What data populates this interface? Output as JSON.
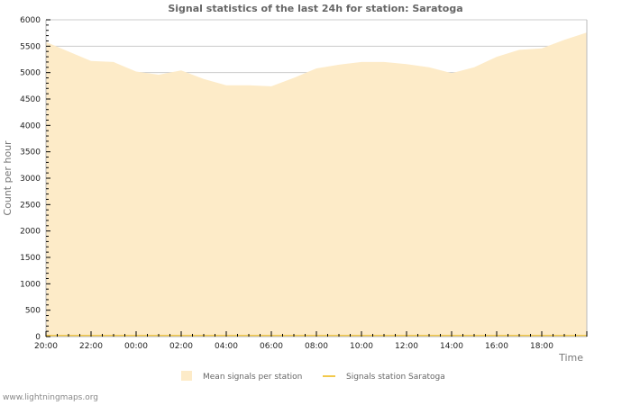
{
  "chart_data": {
    "type": "area",
    "title": "Signal statistics of the last 24h for station: Saratoga",
    "xlabel": "Time",
    "ylabel": "Count per hour",
    "ylim": [
      0,
      6000
    ],
    "yticks": [
      0,
      500,
      1000,
      1500,
      2000,
      2500,
      3000,
      3500,
      4000,
      4500,
      5000,
      5500,
      6000
    ],
    "xtick_labels": [
      "20:00",
      "22:00",
      "00:00",
      "02:00",
      "04:00",
      "06:00",
      "08:00",
      "10:00",
      "12:00",
      "14:00",
      "16:00",
      "18:00"
    ],
    "grid": true,
    "legend_position": "bottom",
    "x": [
      "20:00",
      "21:00",
      "22:00",
      "23:00",
      "00:00",
      "01:00",
      "02:00",
      "03:00",
      "04:00",
      "05:00",
      "06:00",
      "07:00",
      "08:00",
      "09:00",
      "10:00",
      "11:00",
      "12:00",
      "13:00",
      "14:00",
      "15:00",
      "16:00",
      "17:00",
      "18:00",
      "19:00",
      "20:00"
    ],
    "series": [
      {
        "name": "Mean signals per station",
        "type": "area",
        "color": "#fdebc8",
        "values": [
          5580,
          5400,
          5220,
          5200,
          5020,
          4960,
          5040,
          4880,
          4760,
          4760,
          4740,
          4900,
          5080,
          5150,
          5200,
          5200,
          5160,
          5100,
          4990,
          5100,
          5300,
          5430,
          5460,
          5620,
          5760
        ]
      },
      {
        "name": "Signals station Saratoga",
        "type": "line",
        "color": "#f2c94c",
        "values": [
          0,
          0,
          0,
          0,
          0,
          0,
          0,
          0,
          0,
          0,
          0,
          0,
          0,
          0,
          0,
          0,
          0,
          0,
          0,
          0,
          0,
          0,
          0,
          0,
          0
        ]
      }
    ]
  },
  "footer": {
    "site": "www.lightningmaps.org"
  }
}
